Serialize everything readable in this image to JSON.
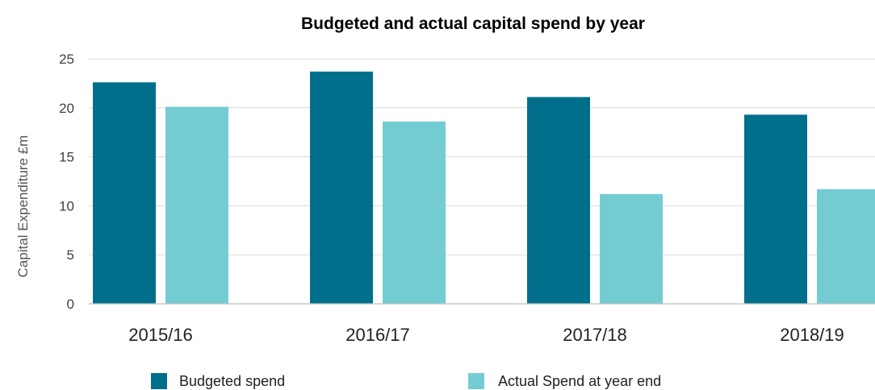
{
  "chart_data": {
    "type": "bar",
    "title": "Budgeted and actual capital spend by year",
    "xlabel": "",
    "ylabel": "Capital Expenditure £m",
    "categories": [
      "2015/16",
      "2016/17",
      "2017/18",
      "2018/19"
    ],
    "series": [
      {
        "name": "Budgeted spend",
        "values": [
          22.6,
          23.7,
          21.1,
          19.3
        ],
        "color": "#006f8c"
      },
      {
        "name": "Actual Spend at year end",
        "values": [
          20.1,
          18.6,
          11.2,
          11.7
        ],
        "color": "#74ccd3"
      }
    ],
    "ylim": [
      0,
      25
    ],
    "yticks": [
      0,
      5,
      10,
      15,
      20,
      25
    ],
    "grid": true,
    "legend": "bottom"
  }
}
